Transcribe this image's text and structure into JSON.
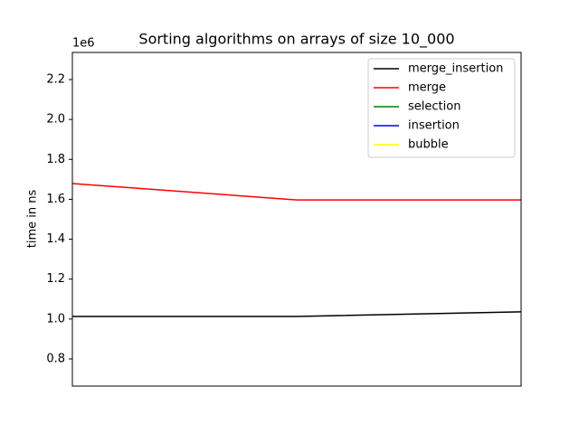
{
  "chart_data": {
    "type": "line",
    "title": "Sorting algorithms on arrays of size 10_000",
    "ylabel": "time in ns",
    "y_offset_label": "1e6",
    "x": [
      0,
      1,
      2
    ],
    "xlim": [
      0,
      2
    ],
    "ylim": [
      0.664,
      2.336
    ],
    "yticks": [
      0.8,
      {
        "value": 1.0,
        "label": "1.0"
      },
      1.2,
      1.4,
      1.6,
      1.8,
      {
        "value": 2.0,
        "label": "2.0"
      },
      2.2
    ],
    "legend": "upper right",
    "series": [
      {
        "name": "merge_insertion",
        "color": "#000000",
        "values": [
          1.013,
          1.013,
          1.036
        ]
      },
      {
        "name": "merge",
        "color": "#ff0000",
        "values": [
          1.679,
          1.597,
          1.597
        ]
      },
      {
        "name": "selection",
        "color": "#008000",
        "values": [
          null,
          null,
          null
        ]
      },
      {
        "name": "insertion",
        "color": "#0000ff",
        "values": [
          null,
          null,
          null
        ]
      },
      {
        "name": "bubble",
        "color": "#ffff00",
        "values": [
          null,
          null,
          null
        ]
      }
    ]
  }
}
